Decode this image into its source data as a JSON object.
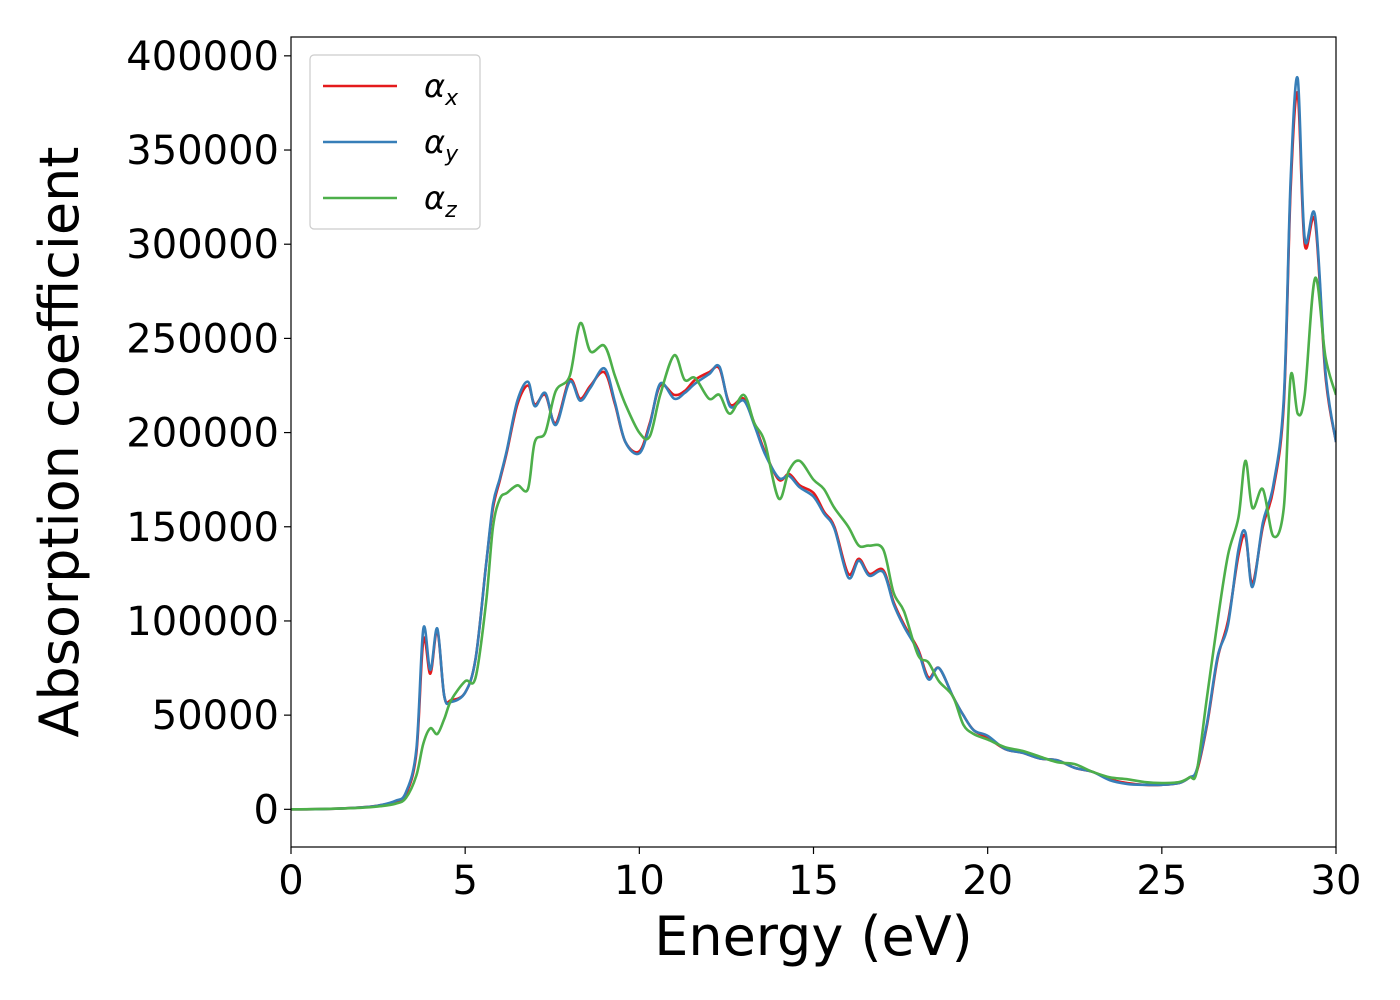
{
  "chart_data": {
    "type": "line",
    "title": "",
    "xlabel": "Energy (eV)",
    "ylabel": "Absorption coefficient",
    "xlim": [
      0,
      30
    ],
    "ylim": [
      -20000,
      410000
    ],
    "xticks": [
      0,
      5,
      10,
      15,
      20,
      25,
      30
    ],
    "yticks": [
      0,
      50000,
      100000,
      150000,
      200000,
      250000,
      300000,
      350000,
      400000
    ],
    "xtick_labels": [
      "0",
      "5",
      "10",
      "15",
      "20",
      "25",
      "30"
    ],
    "ytick_labels": [
      "0",
      "50000",
      "100000",
      "150000",
      "200000",
      "250000",
      "300000",
      "350000",
      "400000"
    ],
    "grid": false,
    "legend": "top-left",
    "series": [
      {
        "name": "αx",
        "symbol": "α",
        "sub": "x",
        "color": "#e41a1c",
        "x": [
          0,
          1,
          2,
          2.5,
          3,
          3.3,
          3.6,
          3.8,
          4.0,
          4.2,
          4.4,
          4.6,
          5.0,
          5.3,
          5.6,
          5.8,
          6.0,
          6.2,
          6.5,
          6.8,
          7.0,
          7.3,
          7.6,
          8.0,
          8.3,
          8.6,
          9.0,
          9.3,
          9.6,
          10.0,
          10.3,
          10.6,
          11.0,
          11.3,
          11.6,
          12.0,
          12.3,
          12.6,
          13.0,
          13.3,
          13.6,
          14.0,
          14.3,
          14.6,
          15.0,
          15.3,
          15.6,
          16.0,
          16.3,
          16.6,
          17.0,
          17.3,
          17.6,
          18.0,
          18.3,
          18.6,
          19.0,
          19.3,
          19.6,
          20.0,
          20.5,
          21.0,
          21.5,
          22.0,
          22.5,
          23.0,
          23.5,
          24.0,
          24.5,
          25.0,
          25.5,
          25.8,
          26.0,
          26.3,
          26.6,
          26.9,
          27.2,
          27.4,
          27.6,
          27.9,
          28.2,
          28.5,
          28.7,
          28.9,
          29.1,
          29.4,
          29.7,
          30.0
        ],
        "y": [
          0,
          200,
          1000,
          2000,
          4000,
          8000,
          30000,
          90000,
          72000,
          95000,
          60000,
          58000,
          62000,
          80000,
          130000,
          160000,
          175000,
          190000,
          215000,
          225000,
          215000,
          220000,
          205000,
          228000,
          218000,
          225000,
          232000,
          215000,
          195000,
          190000,
          205000,
          225000,
          220000,
          222000,
          228000,
          232000,
          234000,
          215000,
          218000,
          205000,
          190000,
          175000,
          178000,
          172000,
          168000,
          158000,
          150000,
          125000,
          133000,
          125000,
          127000,
          110000,
          98000,
          85000,
          70000,
          75000,
          60000,
          50000,
          42000,
          38000,
          32000,
          30000,
          27000,
          26000,
          22000,
          20000,
          16000,
          14000,
          13000,
          13000,
          14000,
          17000,
          20000,
          45000,
          80000,
          100000,
          135000,
          145000,
          120000,
          150000,
          170000,
          215000,
          330000,
          380000,
          300000,
          312000,
          230000,
          195000
        ]
      },
      {
        "name": "αy",
        "symbol": "α",
        "sub": "y",
        "color": "#377eb8",
        "x": [
          0,
          1,
          2,
          2.5,
          3,
          3.3,
          3.6,
          3.8,
          4.0,
          4.2,
          4.4,
          4.6,
          5.0,
          5.3,
          5.6,
          5.8,
          6.0,
          6.2,
          6.5,
          6.8,
          7.0,
          7.3,
          7.6,
          8.0,
          8.3,
          8.6,
          9.0,
          9.3,
          9.6,
          10.0,
          10.3,
          10.6,
          11.0,
          11.3,
          11.6,
          12.0,
          12.3,
          12.6,
          13.0,
          13.3,
          13.6,
          14.0,
          14.3,
          14.6,
          15.0,
          15.3,
          15.6,
          16.0,
          16.3,
          16.6,
          17.0,
          17.3,
          17.6,
          18.0,
          18.3,
          18.6,
          19.0,
          19.3,
          19.6,
          20.0,
          20.5,
          21.0,
          21.5,
          22.0,
          22.5,
          23.0,
          23.5,
          24.0,
          24.5,
          25.0,
          25.5,
          25.8,
          26.0,
          26.3,
          26.6,
          26.9,
          27.2,
          27.4,
          27.6,
          27.9,
          28.2,
          28.5,
          28.7,
          28.9,
          29.1,
          29.4,
          29.7,
          30.0
        ],
        "y": [
          0,
          200,
          1000,
          2000,
          4500,
          9000,
          32000,
          96000,
          74000,
          96000,
          60000,
          57000,
          62000,
          80000,
          130000,
          162000,
          176000,
          191000,
          217000,
          227000,
          214000,
          221000,
          204000,
          227000,
          217000,
          224000,
          234000,
          216000,
          195000,
          189000,
          204000,
          226000,
          218000,
          221000,
          226000,
          231000,
          235000,
          214000,
          217000,
          204000,
          189000,
          176000,
          177000,
          171000,
          166000,
          157000,
          149000,
          123000,
          132000,
          124000,
          126000,
          109000,
          97000,
          84000,
          69000,
          75000,
          60000,
          50000,
          42000,
          39000,
          32000,
          30000,
          27000,
          26000,
          22000,
          20000,
          15500,
          13500,
          13000,
          13000,
          14000,
          17000,
          21000,
          46000,
          81000,
          98000,
          138000,
          147000,
          118000,
          152000,
          172000,
          218000,
          335000,
          388000,
          303000,
          315000,
          232000,
          195000
        ]
      },
      {
        "name": "αz",
        "symbol": "α",
        "sub": "z",
        "color": "#4daf4a",
        "x": [
          0,
          1,
          2,
          2.5,
          3,
          3.3,
          3.6,
          3.8,
          4.0,
          4.2,
          4.4,
          4.6,
          5.0,
          5.3,
          5.6,
          5.8,
          6.0,
          6.2,
          6.5,
          6.8,
          7.0,
          7.3,
          7.6,
          8.0,
          8.3,
          8.6,
          9.0,
          9.3,
          9.6,
          10.0,
          10.3,
          10.6,
          11.0,
          11.3,
          11.6,
          12.0,
          12.3,
          12.6,
          13.0,
          13.3,
          13.6,
          14.0,
          14.3,
          14.6,
          15.0,
          15.3,
          15.6,
          16.0,
          16.3,
          16.6,
          17.0,
          17.3,
          17.6,
          18.0,
          18.3,
          18.6,
          19.0,
          19.3,
          19.6,
          20.0,
          20.5,
          21.0,
          21.5,
          22.0,
          22.5,
          23.0,
          23.5,
          24.0,
          24.5,
          25.0,
          25.5,
          25.8,
          26.0,
          26.3,
          26.6,
          26.9,
          27.2,
          27.4,
          27.6,
          27.9,
          28.2,
          28.5,
          28.7,
          28.9,
          29.1,
          29.4,
          29.7,
          30.0
        ],
        "y": [
          0,
          200,
          800,
          1500,
          3000,
          6000,
          18000,
          35000,
          43000,
          40000,
          48000,
          58000,
          68000,
          70000,
          110000,
          150000,
          165000,
          168000,
          172000,
          170000,
          195000,
          200000,
          222000,
          230000,
          258000,
          243000,
          246000,
          230000,
          215000,
          200000,
          198000,
          220000,
          241000,
          228000,
          229000,
          218000,
          220000,
          210000,
          220000,
          205000,
          195000,
          165000,
          180000,
          185000,
          175000,
          170000,
          160000,
          150000,
          140000,
          140000,
          138000,
          115000,
          105000,
          82000,
          78000,
          68000,
          60000,
          45000,
          40000,
          37000,
          33000,
          31000,
          28000,
          25000,
          24000,
          20000,
          17000,
          16000,
          14500,
          14000,
          14500,
          17000,
          20000,
          60000,
          100000,
          135000,
          155000,
          185000,
          160000,
          170000,
          145000,
          160000,
          230000,
          210000,
          220000,
          282000,
          240000,
          220000
        ]
      }
    ]
  }
}
